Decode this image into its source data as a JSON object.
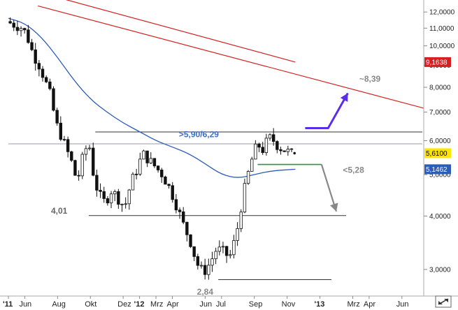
{
  "chart_data": {
    "type": "candlestick",
    "y_scale": "log",
    "ylim": [
      2.6,
      12.8
    ],
    "y_ticks": [
      {
        "value": 12,
        "label": "12,0000"
      },
      {
        "value": 11,
        "label": "11,0000"
      },
      {
        "value": 10,
        "label": "10,0000"
      },
      {
        "value": 9,
        "label": "9,0000"
      },
      {
        "value": 8,
        "label": "8,0000"
      },
      {
        "value": 7,
        "label": "7,0000"
      },
      {
        "value": 6,
        "label": "6,0000"
      },
      {
        "value": 5,
        "label": "5,0000"
      },
      {
        "value": 4,
        "label": "4,0000"
      },
      {
        "value": 3,
        "label": "3,0000"
      }
    ],
    "x_ticks": [
      {
        "month": 0,
        "label": "'11",
        "bold": true
      },
      {
        "month": 1,
        "label": "Jun",
        "bold": false
      },
      {
        "month": 3,
        "label": "Aug",
        "bold": false
      },
      {
        "month": 5,
        "label": "Okt",
        "bold": false
      },
      {
        "month": 7,
        "label": "Dez",
        "bold": false
      },
      {
        "month": 8,
        "label": "'12",
        "bold": true
      },
      {
        "month": 9,
        "label": "Mrz",
        "bold": false
      },
      {
        "month": 10,
        "label": "Apr",
        "bold": false
      },
      {
        "month": 12,
        "label": "Jun",
        "bold": false
      },
      {
        "month": 13,
        "label": "Jul",
        "bold": false
      },
      {
        "month": 15,
        "label": "Sep",
        "bold": false
      },
      {
        "month": 17,
        "label": "Nov",
        "bold": false
      },
      {
        "month": 19,
        "label": "'13",
        "bold": true
      },
      {
        "month": 21,
        "label": "Mrz",
        "bold": false
      },
      {
        "month": 22,
        "label": "Apr",
        "bold": false
      },
      {
        "month": 24,
        "label": "Jun",
        "bold": false
      }
    ],
    "close_path": [
      [
        0,
        11.4
      ],
      [
        0.5,
        11.2
      ],
      [
        1,
        11.0
      ],
      [
        1.3,
        10.4
      ],
      [
        1.6,
        9.6
      ],
      [
        2,
        9.0
      ],
      [
        2.3,
        8.4
      ],
      [
        2.7,
        7.6
      ],
      [
        3,
        6.6
      ],
      [
        3.3,
        6.2
      ],
      [
        3.6,
        5.8
      ],
      [
        4,
        5.3
      ],
      [
        4.3,
        4.8
      ],
      [
        4.6,
        5.4
      ],
      [
        5,
        6.0
      ],
      [
        5.3,
        5.0
      ],
      [
        5.6,
        4.5
      ],
      [
        6,
        4.3
      ],
      [
        6.4,
        4.6
      ],
      [
        6.8,
        4.4
      ],
      [
        7.2,
        4.2
      ],
      [
        7.6,
        4.8
      ],
      [
        8,
        5.2
      ],
      [
        8.3,
        5.6
      ],
      [
        8.7,
        5.4
      ],
      [
        9.1,
        5.2
      ],
      [
        9.5,
        5.0
      ],
      [
        10,
        4.6
      ],
      [
        10.4,
        4.2
      ],
      [
        10.8,
        3.8
      ],
      [
        11.2,
        3.5
      ],
      [
        11.6,
        3.1
      ],
      [
        12,
        2.95
      ],
      [
        12.4,
        3.1
      ],
      [
        12.8,
        3.35
      ],
      [
        13.2,
        3.3
      ],
      [
        13.6,
        3.2
      ],
      [
        14,
        3.6
      ],
      [
        14.3,
        4.2
      ],
      [
        14.6,
        4.8
      ],
      [
        15,
        5.5
      ],
      [
        15.3,
        5.9
      ],
      [
        15.6,
        5.7
      ],
      [
        16,
        6.1
      ],
      [
        16.3,
        6.0
      ],
      [
        16.6,
        5.8
      ],
      [
        17,
        5.7
      ],
      [
        17.3,
        5.61
      ]
    ],
    "moving_average": [
      [
        0,
        11.6
      ],
      [
        1,
        11.3
      ],
      [
        2,
        10.5
      ],
      [
        3,
        9.4
      ],
      [
        4,
        8.3
      ],
      [
        5,
        7.5
      ],
      [
        6,
        7.0
      ],
      [
        7,
        6.6
      ],
      [
        8,
        6.3
      ],
      [
        9,
        6.0
      ],
      [
        10,
        5.8
      ],
      [
        11,
        5.6
      ],
      [
        12,
        5.3
      ],
      [
        13,
        5.0
      ],
      [
        14,
        4.9
      ],
      [
        15,
        5.0
      ],
      [
        16,
        5.1
      ],
      [
        17.5,
        5.1462
      ]
    ],
    "trendlines": [
      {
        "from": [
          2.3,
          13.2
        ],
        "to": [
          17.5,
          9.1638
        ]
      },
      {
        "from": [
          1.8,
          12.4
        ],
        "to": [
          25.7,
          7.15
        ]
      }
    ],
    "support_resistance": [
      {
        "label": "resistance-upper",
        "y": 6.29,
        "x0": 5.3,
        "x1": 25.7,
        "color": "#333333"
      },
      {
        "label": "resistance-lower",
        "y": 5.9,
        "x0": 0,
        "x1": 25.7,
        "color": "#9999a8"
      },
      {
        "label": "support-green",
        "y": 5.28,
        "x0": 15.2,
        "x1": 19.1,
        "color": "#2a9a2a"
      },
      {
        "label": "support-4",
        "y": 4.01,
        "x0": 4.9,
        "x1": 20.6,
        "color": "#333333"
      },
      {
        "label": "support-low",
        "y": 2.84,
        "x0": 12.8,
        "x1": 19.7,
        "color": "#333333"
      }
    ],
    "annotations": [
      {
        "text": ">5,90/6,29",
        "x": 10.4,
        "y": 6.12,
        "color": "#3a6fc8"
      },
      {
        "text": "~8,39",
        "x": 21.4,
        "y": 8.25,
        "color": "#888888"
      },
      {
        "text": "<5,28",
        "x": 20.4,
        "y": 5.05,
        "color": "#888888"
      },
      {
        "text": "4,01",
        "x": 2.6,
        "y": 4.05,
        "color": "#666666"
      },
      {
        "text": "2,84",
        "x": 11.5,
        "y": 2.62,
        "color": "#888888"
      }
    ],
    "arrows": [
      {
        "label": "bullish",
        "color": "#5a2ee8",
        "path": [
          [
            18.1,
            6.42
          ],
          [
            19.5,
            6.42
          ],
          [
            20.7,
            7.75
          ]
        ]
      },
      {
        "label": "bearish",
        "color": "#888888",
        "path": [
          [
            19.1,
            5.28
          ],
          [
            20.0,
            4.1
          ]
        ]
      }
    ],
    "price_badges": [
      {
        "value": "9,1638",
        "y": 9.1638,
        "bg": "#d62020",
        "fg": "#ffffff"
      },
      {
        "value": "5,6100",
        "y": 5.61,
        "bg": "#ffe600",
        "fg": "#000000"
      },
      {
        "value": "5,1462",
        "y": 5.1462,
        "bg": "#2a5cb8",
        "fg": "#ffffff"
      }
    ]
  }
}
